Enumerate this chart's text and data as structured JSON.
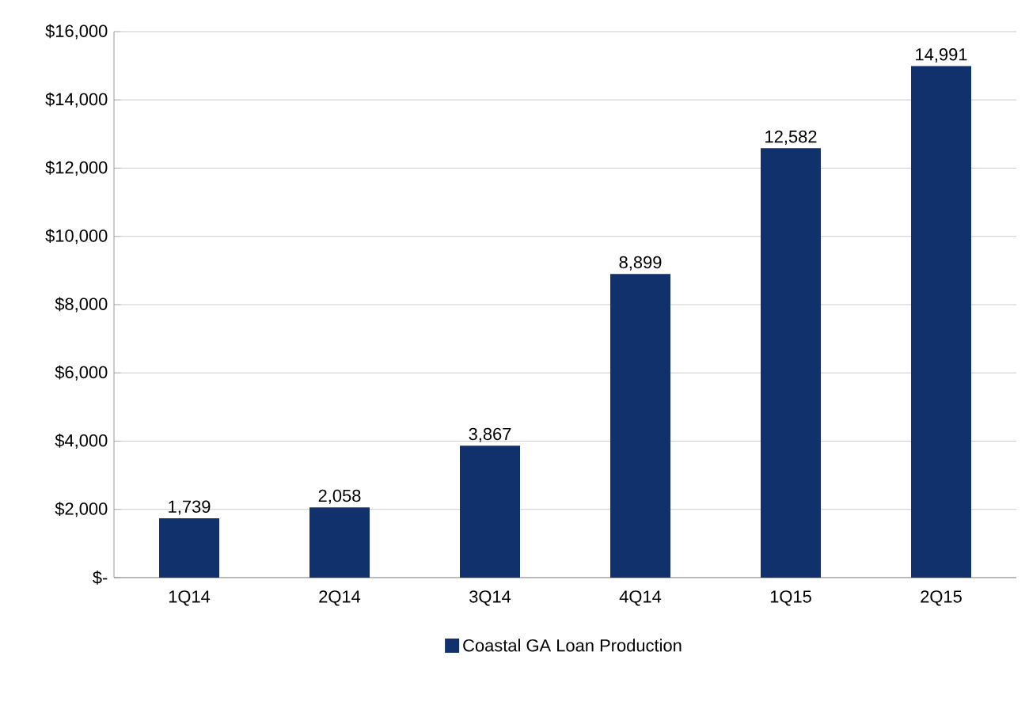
{
  "chart_data": {
    "type": "bar",
    "categories": [
      "1Q14",
      "2Q14",
      "3Q14",
      "4Q14",
      "1Q15",
      "2Q15"
    ],
    "series": [
      {
        "name": "Coastal GA Loan Production",
        "color": "#10316b",
        "values": [
          1739,
          2058,
          3867,
          8899,
          12582,
          14991
        ],
        "value_labels": [
          "1,739",
          "2,058",
          "3,867",
          "8,899",
          "12,582",
          "14,991"
        ]
      }
    ],
    "ylim": [
      0,
      16000
    ],
    "yticks": [
      {
        "value": 0,
        "label": "$-"
      },
      {
        "value": 2000,
        "label": "$2,000"
      },
      {
        "value": 4000,
        "label": "$4,000"
      },
      {
        "value": 6000,
        "label": "$6,000"
      },
      {
        "value": 8000,
        "label": "$8,000"
      },
      {
        "value": 10000,
        "label": "$10,000"
      },
      {
        "value": 12000,
        "label": "$12,000"
      },
      {
        "value": 14000,
        "label": "$14,000"
      },
      {
        "value": 16000,
        "label": "$16,000"
      }
    ],
    "grid": "y",
    "legend": "bottom"
  }
}
